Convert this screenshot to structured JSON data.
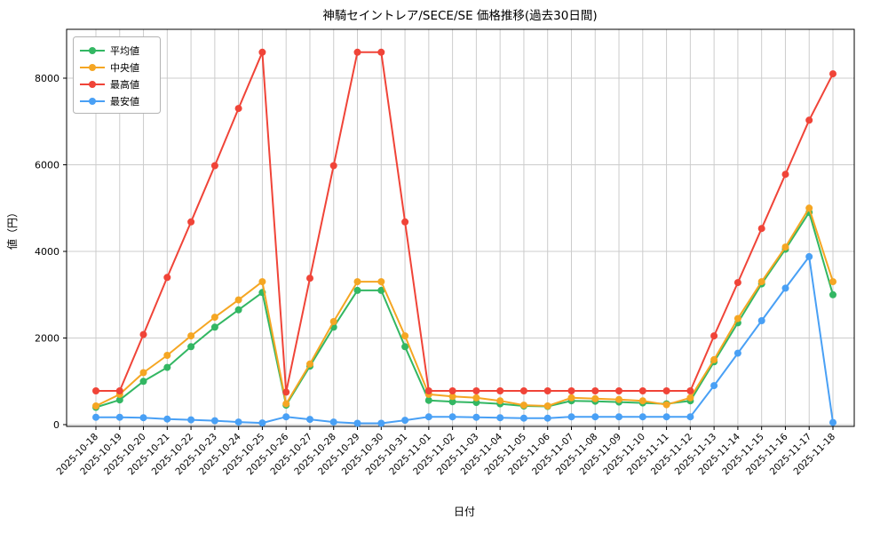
{
  "chart_data": {
    "type": "line",
    "title": "神騎セイントレア/SECE/SE 価格推移(過去30日間)",
    "xlabel": "日付",
    "ylabel": "値（円）",
    "yticks": [
      0,
      2000,
      4000,
      6000,
      8000
    ],
    "ylim": [
      -100,
      9150
    ],
    "grid": true,
    "legend_position": "upper-left",
    "categories": [
      "2025-10-18",
      "2025-10-19",
      "2025-10-20",
      "2025-10-21",
      "2025-10-22",
      "2025-10-23",
      "2025-10-24",
      "2025-10-25",
      "2025-10-26",
      "2025-10-27",
      "2025-10-28",
      "2025-10-29",
      "2025-10-30",
      "2025-10-31",
      "2025-11-01",
      "2025-11-02",
      "2025-11-03",
      "2025-11-04",
      "2025-11-05",
      "2025-11-06",
      "2025-11-07",
      "2025-11-08",
      "2025-11-09",
      "2025-11-10",
      "2025-11-11",
      "2025-11-12",
      "2025-11-13",
      "2025-11-14",
      "2025-11-15",
      "2025-11-16",
      "2025-11-17",
      "2025-11-18"
    ],
    "series": [
      {
        "name": "平均値",
        "key": "average",
        "color": "#33b763",
        "values": [
          400,
          570,
          1000,
          1320,
          1800,
          2250,
          2650,
          3050,
          450,
          1350,
          2250,
          3100,
          3100,
          1800,
          560,
          530,
          510,
          480,
          430,
          420,
          550,
          540,
          520,
          500,
          480,
          550,
          1450,
          2350,
          3250,
          4050,
          4900,
          3000
        ]
      },
      {
        "name": "中央値",
        "key": "median",
        "color": "#f5a623",
        "values": [
          430,
          700,
          1200,
          1600,
          2050,
          2480,
          2880,
          3300,
          480,
          1400,
          2380,
          3300,
          3300,
          2050,
          700,
          650,
          620,
          550,
          450,
          430,
          620,
          600,
          580,
          550,
          460,
          620,
          1500,
          2450,
          3300,
          4100,
          5000,
          3300
        ]
      },
      {
        "name": "最高値",
        "key": "max",
        "color": "#f04438",
        "values": [
          780,
          780,
          2080,
          3400,
          4680,
          5980,
          7300,
          8600,
          750,
          3380,
          5980,
          8600,
          8600,
          4680,
          780,
          780,
          780,
          780,
          780,
          780,
          780,
          780,
          780,
          780,
          780,
          780,
          2050,
          3280,
          4530,
          5780,
          7030,
          8100
        ]
      },
      {
        "name": "最安値",
        "key": "min",
        "color": "#49a0f5",
        "values": [
          170,
          170,
          160,
          130,
          110,
          90,
          60,
          40,
          180,
          120,
          60,
          30,
          30,
          100,
          180,
          180,
          170,
          160,
          150,
          150,
          180,
          180,
          180,
          180,
          180,
          180,
          900,
          1650,
          2400,
          3150,
          3880,
          50
        ]
      }
    ]
  }
}
